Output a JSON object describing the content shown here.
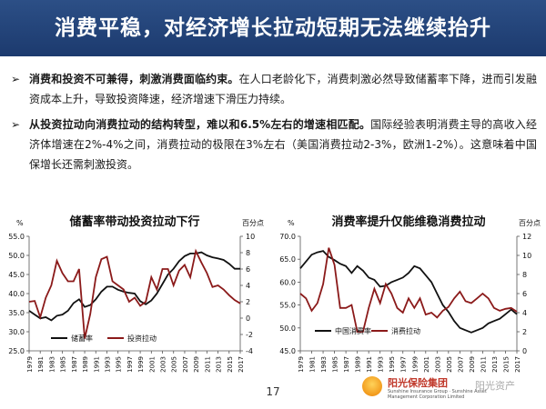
{
  "title": "消费平稳，对经济增长拉动短期无法继续抬升",
  "bullets": [
    {
      "bold": "消费和投资不可兼得，刺激消费面临约束。",
      "rest": "在人口老龄化下，消费刺激必然导致储蓄率下降，进而引发融资成本上升，导致投资降速，经济增速下滑压力持续。"
    },
    {
      "bold": "从投资拉动向消费拉动的结构转型，难以和6.5%左右的增速相匹配。",
      "rest": "国际经验表明消费主导的高收入经济体增速在2%-4%之间，消费拉动的极限在3%左右（美国消费拉动2-3%，欧洲1-2%）。这意味着中国保增长还需刺激投资。"
    }
  ],
  "page_number": "17",
  "logo": {
    "cn": "阳光保险集团",
    "en": "Sunshine Insurance Group · Sunshine Asset Management Corporation Limited",
    "watermark": "阳光资产"
  },
  "colors": {
    "title_bg": "#1c3a6e",
    "series_black": "#111111",
    "series_red": "#8b1a1a"
  },
  "chart_data": [
    {
      "type": "line",
      "title": "储蓄率带动投资拉动下行",
      "left_unit": "%",
      "right_unit": "百分点",
      "x": [
        1979,
        1980,
        1981,
        1982,
        1983,
        1984,
        1985,
        1986,
        1987,
        1988,
        1989,
        1990,
        1991,
        1992,
        1993,
        1994,
        1995,
        1996,
        1997,
        1998,
        1999,
        2000,
        2001,
        2002,
        2003,
        2004,
        2005,
        2006,
        2007,
        2008,
        2009,
        2010,
        2011,
        2012,
        2013,
        2014,
        2015,
        2016,
        2017
      ],
      "x_ticks": [
        "1979",
        "1981",
        "1983",
        "1985",
        "1987",
        "1989",
        "1991",
        "1993",
        "1995",
        "1997",
        "1999",
        "2001",
        "2003",
        "2005",
        "2007",
        "2009",
        "2011",
        "2013",
        "2015",
        "2017"
      ],
      "ylim": [
        25,
        55
      ],
      "y_ticks": [
        "25.0",
        "30.0",
        "35.0",
        "40.0",
        "45.0",
        "50.0",
        "55.0"
      ],
      "y2lim": [
        -4,
        10
      ],
      "y2_ticks": [
        "-4",
        "-2",
        "0",
        "2",
        "4",
        "6",
        "8",
        "10"
      ],
      "series": [
        {
          "name": "储蓄率",
          "axis": "left",
          "color": "#111111",
          "values": [
            35.5,
            34.5,
            33.5,
            33.8,
            33.0,
            34.2,
            34.5,
            35.5,
            37.5,
            38.5,
            36.5,
            37.0,
            38.5,
            40.5,
            41.8,
            41.8,
            41.0,
            40.5,
            40.2,
            40.0,
            38.0,
            37.2,
            38.2,
            40.0,
            42.5,
            45.0,
            46.5,
            48.5,
            49.8,
            50.5,
            50.5,
            50.8,
            50.0,
            49.5,
            49.2,
            48.8,
            47.8,
            46.5,
            46.5
          ]
        },
        {
          "name": "投资拉动",
          "axis": "right",
          "color": "#8b1a1a",
          "values": [
            2.0,
            2.1,
            0.1,
            2.5,
            4.0,
            7.0,
            5.5,
            4.5,
            4.5,
            6.0,
            -2.5,
            0.5,
            5.0,
            7.2,
            7.5,
            4.5,
            4.0,
            3.5,
            2.0,
            2.5,
            1.5,
            2.0,
            5.0,
            3.5,
            6.0,
            6.0,
            4.0,
            5.8,
            6.5,
            5.0,
            8.2,
            6.8,
            5.5,
            3.8,
            4.0,
            3.5,
            2.8,
            2.2,
            1.8
          ]
        }
      ]
    },
    {
      "type": "line",
      "title": "消费率提升仅能维稳消费拉动",
      "left_unit": "%",
      "right_unit": "百分点",
      "x": [
        1979,
        1980,
        1981,
        1982,
        1983,
        1984,
        1985,
        1986,
        1987,
        1988,
        1989,
        1990,
        1991,
        1992,
        1993,
        1994,
        1995,
        1996,
        1997,
        1998,
        1999,
        2000,
        2001,
        2002,
        2003,
        2004,
        2005,
        2006,
        2007,
        2008,
        2009,
        2010,
        2011,
        2012,
        2013,
        2014,
        2015,
        2016,
        2017
      ],
      "x_ticks": [
        "1979",
        "1981",
        "1983",
        "1985",
        "1987",
        "1989",
        "1991",
        "1993",
        "1995",
        "1997",
        "1999",
        "2001",
        "2003",
        "2005",
        "2007",
        "2009",
        "2011",
        "2013",
        "2015",
        "2017"
      ],
      "ylim": [
        45,
        70
      ],
      "y_ticks": [
        "45.0",
        "50.0",
        "55.0",
        "60.0",
        "65.0",
        "70.0"
      ],
      "y2lim": [
        0,
        12
      ],
      "y2_ticks": [
        "0",
        "2",
        "4",
        "6",
        "8",
        "10",
        "12"
      ],
      "series": [
        {
          "name": "中国消费率",
          "axis": "left",
          "color": "#111111",
          "values": [
            63.0,
            64.5,
            66.0,
            66.5,
            66.8,
            65.5,
            64.8,
            64.0,
            63.5,
            62.0,
            63.5,
            62.5,
            61.0,
            60.5,
            59.0,
            59.2,
            60.0,
            60.5,
            61.0,
            62.0,
            63.5,
            63.0,
            61.5,
            60.0,
            57.5,
            55.0,
            53.5,
            51.5,
            50.0,
            49.5,
            49.0,
            49.5,
            50.0,
            51.0,
            51.5,
            52.0,
            53.0,
            54.0,
            53.0
          ]
        },
        {
          "name": "消费拉动",
          "axis": "right",
          "color": "#8b1a1a",
          "values": [
            6.0,
            5.5,
            4.2,
            5.0,
            7.0,
            10.8,
            9.0,
            4.5,
            4.5,
            4.8,
            2.0,
            2.0,
            4.5,
            6.5,
            5.0,
            7.0,
            6.0,
            4.5,
            4.0,
            5.5,
            4.5,
            5.5,
            3.8,
            4.0,
            3.5,
            4.2,
            4.6,
            5.5,
            6.2,
            5.2,
            5.0,
            5.5,
            6.0,
            5.5,
            4.5,
            4.2,
            4.4,
            4.5,
            4.1
          ]
        }
      ]
    }
  ]
}
